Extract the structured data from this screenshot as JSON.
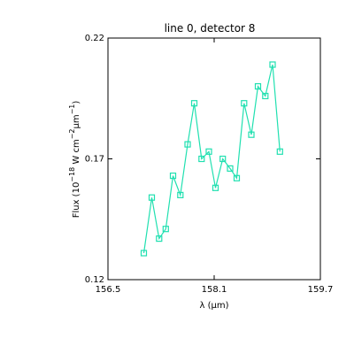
{
  "chart_data": {
    "type": "line",
    "title": "line 0, detector 8",
    "xlabel": "λ (μm)",
    "ylabel": {
      "base": "Flux (10",
      "exp1": "−18",
      "mid": " W cm",
      "exp2": "−2",
      "mid2": "μm",
      "exp3": "−1",
      "end": ")"
    },
    "xlim": [
      156.5,
      159.7
    ],
    "ylim": [
      0.12,
      0.22
    ],
    "xticks": [
      {
        "value": 156.5,
        "label": "156.5"
      },
      {
        "value": 158.1,
        "label": "158.1"
      },
      {
        "value": 159.7,
        "label": "159.7"
      }
    ],
    "yticks": [
      {
        "value": 0.12,
        "label": "0.12"
      },
      {
        "value": 0.17,
        "label": "0.17"
      },
      {
        "value": 0.22,
        "label": "0.22"
      }
    ],
    "grid": false,
    "series": [
      {
        "color": "#20e0b0",
        "marker": "square",
        "x": [
          157.04,
          157.16,
          157.27,
          157.37,
          157.48,
          157.59,
          157.7,
          157.8,
          157.91,
          158.02,
          158.12,
          158.23,
          158.34,
          158.44,
          158.55,
          158.66,
          158.76,
          158.87,
          158.98,
          159.09,
          159.19
        ],
        "y": [
          0.131,
          0.154,
          0.137,
          0.141,
          0.163,
          0.155,
          0.176,
          0.193,
          0.17,
          0.173,
          0.158,
          0.17,
          0.166,
          0.162,
          0.193,
          0.18,
          0.2,
          0.196,
          0.209,
          0.173,
          null
        ]
      }
    ]
  }
}
